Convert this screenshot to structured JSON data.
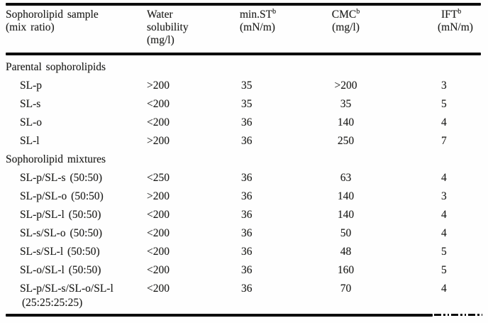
{
  "table": {
    "header": {
      "sample": {
        "line1": "Sophorolipid sample",
        "line2": "(mix ratio)"
      },
      "water": {
        "line1": "Water",
        "line2": "solubility",
        "line3": "(mg/l)"
      },
      "min_st": {
        "title": "min.ST",
        "sup": "b",
        "unit": "(mN/m)"
      },
      "cmc": {
        "title": "CMC",
        "sup": "b",
        "unit": "(mg/l)"
      },
      "ift": {
        "title": "IFT",
        "sup": "b",
        "unit": "(mN/m)"
      }
    },
    "sections": [
      {
        "title": "Parental sophorolipids",
        "rows": [
          {
            "sample": "SL-p",
            "water_solubility": ">200",
            "min_st": "35",
            "cmc": ">200",
            "ift": "3"
          },
          {
            "sample": "SL-s",
            "water_solubility": "<200",
            "min_st": "35",
            "cmc": "35",
            "ift": "5"
          },
          {
            "sample": "SL-o",
            "water_solubility": "<200",
            "min_st": "36",
            "cmc": "140",
            "ift": "4"
          },
          {
            "sample": "SL-l",
            "water_solubility": ">200",
            "min_st": "36",
            "cmc": "250",
            "ift": "7"
          }
        ]
      },
      {
        "title": "Sophorolipid mixtures",
        "rows": [
          {
            "sample": "SL-p/SL-s (50:50)",
            "water_solubility": "<250",
            "min_st": "36",
            "cmc": "63",
            "ift": "4"
          },
          {
            "sample": "SL-p/SL-o (50:50)",
            "water_solubility": ">200",
            "min_st": "36",
            "cmc": "140",
            "ift": "3"
          },
          {
            "sample": "SL-p/SL-l (50:50)",
            "water_solubility": "<200",
            "min_st": "36",
            "cmc": "140",
            "ift": "4"
          },
          {
            "sample": "SL-s/SL-o (50:50)",
            "water_solubility": "<200",
            "min_st": "36",
            "cmc": "50",
            "ift": "4"
          },
          {
            "sample": "SL-s/SL-l (50:50)",
            "water_solubility": "<200",
            "min_st": "36",
            "cmc": "48",
            "ift": "5"
          },
          {
            "sample": "SL-o/SL-l (50:50)",
            "water_solubility": "<200",
            "min_st": "36",
            "cmc": "160",
            "ift": "5"
          },
          {
            "sample": "SL-p/SL-s/SL-o/SL-l",
            "sample_line2": "(25:25:25:25)",
            "water_solubility": "<200",
            "min_st": "36",
            "cmc": "70",
            "ift": "4"
          }
        ]
      }
    ]
  },
  "colors": {
    "ink": "#1d1d1b",
    "rule": "#0d0d0d",
    "background": "#fefefe"
  }
}
